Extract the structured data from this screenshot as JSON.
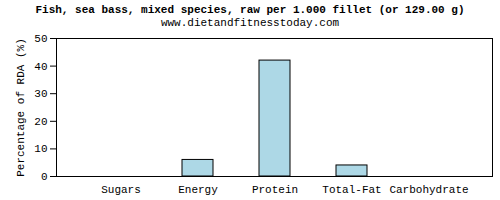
{
  "chart_data": {
    "type": "bar",
    "title": "Fish, sea bass, mixed species, raw per 1.000 fillet (or 129.00 g)",
    "subtitle": "www.dietandfitnesstoday.com",
    "y_label": "Percentage of RDA (%)",
    "categories": [
      "Sugars",
      "Energy",
      "Protein",
      "Total-Fat",
      "Carbohydrate"
    ],
    "values": [
      0,
      6,
      42,
      4,
      0
    ],
    "color": "#add8e6",
    "ylim": [
      0,
      50
    ],
    "yticks": [
      0,
      10,
      20,
      30,
      40,
      50
    ],
    "grid": false
  }
}
